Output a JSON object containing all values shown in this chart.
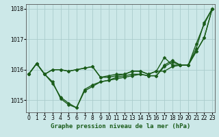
{
  "xlabel": "Graphe pression niveau de la mer (hPa)",
  "background_color": "#cce8e8",
  "grid_color": "#aacccc",
  "line_color": "#1a5c1a",
  "ylim": [
    1014.6,
    1018.15
  ],
  "xlim": [
    -0.3,
    23.3
  ],
  "yticks": [
    1015,
    1016,
    1017,
    1018
  ],
  "xticks": [
    0,
    1,
    2,
    3,
    4,
    5,
    6,
    7,
    8,
    9,
    10,
    11,
    12,
    13,
    14,
    15,
    16,
    17,
    18,
    19,
    20,
    21,
    22,
    23
  ],
  "series": [
    [
      1015.85,
      1016.2,
      1015.85,
      1015.6,
      1015.05,
      1014.85,
      1014.75,
      1015.35,
      1015.5,
      1015.6,
      1015.65,
      1015.7,
      1015.75,
      1015.8,
      1015.85,
      1015.8,
      1015.8,
      1016.1,
      1016.25,
      1016.15,
      1016.15,
      1016.85,
      1017.5,
      1018.0
    ],
    [
      1015.85,
      1016.2,
      1015.85,
      1016.0,
      1016.0,
      1015.95,
      1016.0,
      1016.05,
      1016.1,
      1015.75,
      1015.75,
      1015.8,
      1015.85,
      1015.95,
      1015.95,
      1015.85,
      1015.95,
      1015.95,
      1016.1,
      1016.15,
      1016.15,
      1016.6,
      1017.05,
      1018.0
    ],
    [
      1015.85,
      1016.2,
      1015.85,
      1016.0,
      1016.0,
      1015.95,
      1016.0,
      1016.05,
      1016.1,
      1015.75,
      1015.8,
      1015.85,
      1015.85,
      1015.95,
      1015.95,
      1015.85,
      1015.95,
      1016.4,
      1016.15,
      1016.15,
      1016.15,
      1016.6,
      1017.05,
      1018.0
    ],
    [
      1015.85,
      1016.2,
      1015.85,
      1015.55,
      1015.1,
      1014.9,
      1014.75,
      1015.3,
      1015.45,
      1015.6,
      1015.65,
      1015.75,
      1015.8,
      1015.85,
      1015.85,
      1015.8,
      1015.8,
      1016.15,
      1016.3,
      1016.15,
      1016.15,
      1016.7,
      1017.55,
      1018.0
    ]
  ],
  "marker": "D",
  "marker_size": 2.5,
  "linewidth": 1.0,
  "tick_fontsize": 5.5,
  "label_fontsize": 6.5,
  "label_fontweight": "bold"
}
